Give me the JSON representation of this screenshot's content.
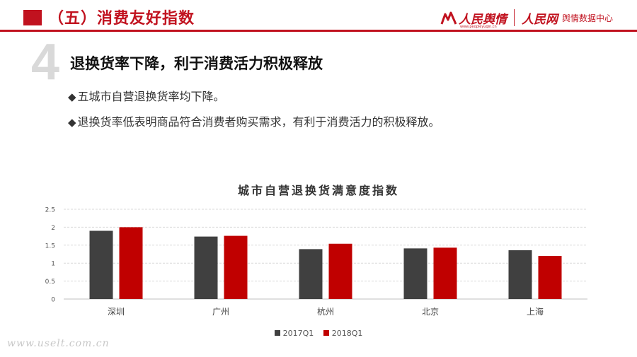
{
  "header": {
    "title": "（五）消费友好指数",
    "logo1": "人民舆情",
    "logo1_url": "www.peopleyuqin.cn",
    "logo2": "人民网",
    "logo2_sub": "舆情数据中心",
    "accent": "#c1121f"
  },
  "section": {
    "number": "4",
    "title": "退换货率下降，利于消费活力积极释放"
  },
  "bullets": [
    "五城市自营退换货率均下降。",
    "退换货率低表明商品符合消费者购买需求，有利于消费活力的积极释放。"
  ],
  "watermark": "www.uselt.com.cn",
  "chart_data": {
    "type": "bar",
    "title": "城市自营退换货满意度指数",
    "categories": [
      "深圳",
      "广州",
      "杭州",
      "北京",
      "上海"
    ],
    "series": [
      {
        "name": "2017Q1",
        "color": "#404040",
        "values": [
          1.9,
          1.74,
          1.39,
          1.41,
          1.36
        ]
      },
      {
        "name": "2018Q1",
        "color": "#c00000",
        "values": [
          2.0,
          1.76,
          1.54,
          1.43,
          1.2
        ]
      }
    ],
    "yticks": [
      "0",
      "0.5",
      "1",
      "1.5",
      "2",
      "2.5"
    ],
    "ylim": [
      0,
      2.5
    ],
    "grid": true,
    "legend_position": "bottom"
  }
}
